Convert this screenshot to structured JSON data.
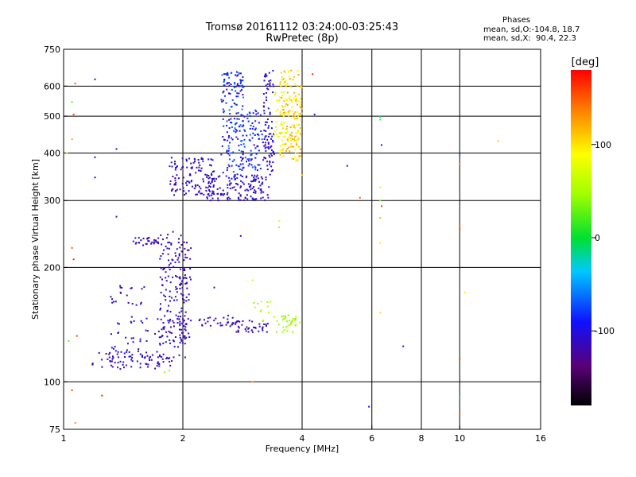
{
  "header": {
    "title": "Tromsø 20161112 03:24:00-03:25:43",
    "subtitle": "RwPretec (8p)"
  },
  "stats": {
    "heading": "Phases",
    "line1": "mean, sd,O:-104.8, 18.7",
    "line2": "mean, sd,X:  90.4, 22.3"
  },
  "colorbar": {
    "unit_label": "[deg]",
    "ticks": [
      {
        "value": 100,
        "label": "100"
      },
      {
        "value": 0,
        "label": "0"
      },
      {
        "value": -100,
        "label": "-100"
      }
    ],
    "range": [
      -180,
      180
    ]
  },
  "chart_data": {
    "type": "scatter",
    "xlabel": "Frequency [MHz]",
    "ylabel": "Stationary phase Virtual Height [km]",
    "xscale": "log",
    "yscale": "log",
    "xlim": [
      1,
      16
    ],
    "ylim": [
      75,
      750
    ],
    "grid": true,
    "xticks": [
      {
        "value": 1,
        "label": "1"
      },
      {
        "value": 2,
        "label": "2"
      },
      {
        "value": 4,
        "label": "4"
      },
      {
        "value": 6,
        "label": "6"
      },
      {
        "value": 8,
        "label": "8"
      },
      {
        "value": 10,
        "label": "10"
      },
      {
        "value": 16,
        "label": "16"
      }
    ],
    "xgrid": [
      2,
      4,
      6,
      8,
      10
    ],
    "yticks": [
      {
        "value": 75,
        "label": "75"
      },
      {
        "value": 100,
        "label": "100"
      },
      {
        "value": 200,
        "label": "200"
      },
      {
        "value": 300,
        "label": "300"
      },
      {
        "value": 400,
        "label": "400"
      },
      {
        "value": 500,
        "label": "500"
      },
      {
        "value": 600,
        "label": "600"
      },
      {
        "value": 750,
        "label": "750"
      }
    ],
    "ygrid": [
      100,
      200,
      300,
      400,
      500,
      600
    ],
    "clusters": [
      {
        "x": [
          1.18,
          1.9
        ],
        "y": [
          108,
          120
        ],
        "phase": [
          -100,
          -120
        ],
        "n": 70
      },
      {
        "x": [
          1.3,
          2.05
        ],
        "y": [
          115,
          150
        ],
        "phase": [
          -95,
          -125
        ],
        "n": 80
      },
      {
        "x": [
          1.75,
          2.05
        ],
        "y": [
          125,
          250
        ],
        "phase": [
          -100,
          -125
        ],
        "n": 140
      },
      {
        "x": [
          1.95,
          2.1
        ],
        "y": [
          130,
          230
        ],
        "phase": [
          -105,
          -120
        ],
        "n": 40
      },
      {
        "x": [
          1.5,
          1.75
        ],
        "y": [
          228,
          240
        ],
        "phase": [
          -110,
          -125
        ],
        "n": 30
      },
      {
        "x": [
          1.3,
          1.65
        ],
        "y": [
          150,
          180
        ],
        "phase": [
          -100,
          -130
        ],
        "n": 20
      },
      {
        "x": [
          2.2,
          2.7
        ],
        "y": [
          140,
          150
        ],
        "phase": [
          -110,
          -120
        ],
        "n": 25
      },
      {
        "x": [
          2.65,
          3.3
        ],
        "y": [
          135,
          145
        ],
        "phase": [
          -110,
          -120
        ],
        "n": 45
      },
      {
        "x": [
          3.0,
          3.4
        ],
        "y": [
          145,
          165
        ],
        "phase": [
          40,
          70
        ],
        "n": 12
      },
      {
        "x": [
          3.45,
          3.95
        ],
        "y": [
          135,
          150
        ],
        "phase": [
          35,
          60
        ],
        "n": 35
      },
      {
        "x": [
          1.85,
          2.4
        ],
        "y": [
          310,
          390
        ],
        "phase": [
          -105,
          -120
        ],
        "n": 120
      },
      {
        "x": [
          2.3,
          3.3
        ],
        "y": [
          300,
          350
        ],
        "phase": [
          -95,
          -120
        ],
        "n": 140
      },
      {
        "x": [
          2.5,
          2.85
        ],
        "y": [
          340,
          660
        ],
        "phase": [
          -60,
          -115
        ],
        "n": 170
      },
      {
        "x": [
          2.8,
          3.2
        ],
        "y": [
          360,
          520
        ],
        "phase": [
          -60,
          -110
        ],
        "n": 80
      },
      {
        "x": [
          3.2,
          3.4
        ],
        "y": [
          350,
          660
        ],
        "phase": [
          -95,
          -115
        ],
        "n": 90
      },
      {
        "x": [
          3.5,
          4.0
        ],
        "y": [
          380,
          660
        ],
        "phase": [
          80,
          130
        ],
        "n": 180
      },
      {
        "x": [
          3.4,
          3.65
        ],
        "y": [
          440,
          580
        ],
        "phase": [
          70,
          100
        ],
        "n": 30
      }
    ],
    "points": [
      {
        "x": 1.05,
        "y": 545,
        "phase": 30
      },
      {
        "x": 1.07,
        "y": 610,
        "phase": 150
      },
      {
        "x": 1.06,
        "y": 505,
        "phase": 160
      },
      {
        "x": 1.05,
        "y": 435,
        "phase": 120
      },
      {
        "x": 1.02,
        "y": 400,
        "phase": 60
      },
      {
        "x": 1.2,
        "y": 625,
        "phase": -120
      },
      {
        "x": 1.2,
        "y": 345,
        "phase": -110
      },
      {
        "x": 1.2,
        "y": 390,
        "phase": -100
      },
      {
        "x": 1.36,
        "y": 410,
        "phase": -105
      },
      {
        "x": 1.36,
        "y": 272,
        "phase": -110
      },
      {
        "x": 1.05,
        "y": 225,
        "phase": 150
      },
      {
        "x": 1.06,
        "y": 210,
        "phase": 170
      },
      {
        "x": 1.05,
        "y": 95,
        "phase": 160
      },
      {
        "x": 1.25,
        "y": 92,
        "phase": 170
      },
      {
        "x": 1.8,
        "y": 106,
        "phase": 40
      },
      {
        "x": 1.85,
        "y": 107,
        "phase": 40
      },
      {
        "x": 1.03,
        "y": 128,
        "phase": 30
      },
      {
        "x": 1.08,
        "y": 132,
        "phase": 160
      },
      {
        "x": 4.0,
        "y": 350,
        "phase": 110
      },
      {
        "x": 4.3,
        "y": 505,
        "phase": -100
      },
      {
        "x": 5.2,
        "y": 370,
        "phase": -110
      },
      {
        "x": 4.25,
        "y": 645,
        "phase": 170
      },
      {
        "x": 5.6,
        "y": 305,
        "phase": 150
      },
      {
        "x": 6.3,
        "y": 498,
        "phase": -20
      },
      {
        "x": 6.3,
        "y": 490,
        "phase": 20
      },
      {
        "x": 6.35,
        "y": 420,
        "phase": -100
      },
      {
        "x": 6.3,
        "y": 325,
        "phase": 70
      },
      {
        "x": 6.3,
        "y": 300,
        "phase": 40
      },
      {
        "x": 6.35,
        "y": 290,
        "phase": 160
      },
      {
        "x": 6.3,
        "y": 270,
        "phase": 120
      },
      {
        "x": 6.3,
        "y": 232,
        "phase": 100
      },
      {
        "x": 6.3,
        "y": 152,
        "phase": 100
      },
      {
        "x": 5.9,
        "y": 86,
        "phase": -90
      },
      {
        "x": 7.2,
        "y": 124,
        "phase": -110
      },
      {
        "x": 10.0,
        "y": 395,
        "phase": -60
      },
      {
        "x": 10.0,
        "y": 375,
        "phase": 140
      },
      {
        "x": 10.0,
        "y": 258,
        "phase": 150
      },
      {
        "x": 10.0,
        "y": 253,
        "phase": 160
      },
      {
        "x": 10.3,
        "y": 172,
        "phase": 90
      },
      {
        "x": 10.0,
        "y": 115,
        "phase": 160
      },
      {
        "x": 10.0,
        "y": 91,
        "phase": -20
      },
      {
        "x": 10.0,
        "y": 82,
        "phase": 150
      },
      {
        "x": 12.5,
        "y": 430,
        "phase": 110
      },
      {
        "x": 3.0,
        "y": 185,
        "phase": 60
      },
      {
        "x": 3.5,
        "y": 265,
        "phase": 80
      },
      {
        "x": 3.5,
        "y": 255,
        "phase": 110
      },
      {
        "x": 3.0,
        "y": 100,
        "phase": 130
      },
      {
        "x": 2.8,
        "y": 242,
        "phase": -100
      },
      {
        "x": 2.4,
        "y": 177,
        "phase": -110
      },
      {
        "x": 1.07,
        "y": 78,
        "phase": 130
      }
    ]
  }
}
